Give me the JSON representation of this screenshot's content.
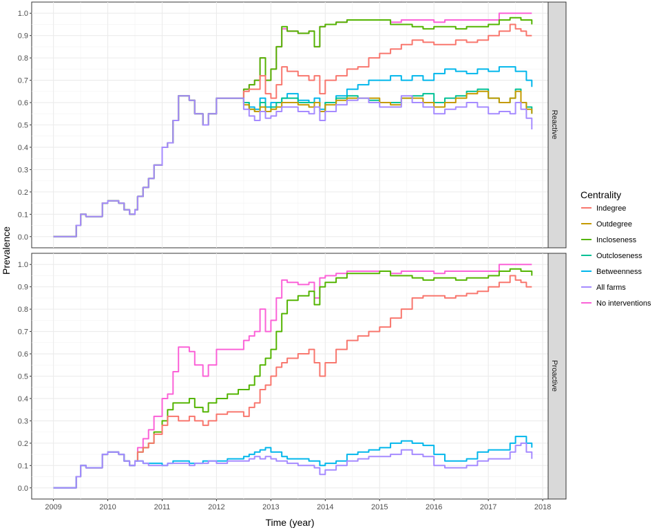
{
  "chart_data": {
    "type": "line",
    "xlabel": "Time (year)",
    "ylabel": "Prevalence",
    "xlim": [
      2008.6,
      2018.1
    ],
    "ylim": [
      -0.05,
      1.05
    ],
    "x_ticks": [
      2009,
      2010,
      2011,
      2012,
      2013,
      2014,
      2015,
      2016,
      2017,
      2018
    ],
    "y_ticks": [
      0.0,
      0.1,
      0.2,
      0.3,
      0.4,
      0.5,
      0.6,
      0.7,
      0.8,
      0.9,
      1.0
    ],
    "x_tick_labels": [
      "2009",
      "2010",
      "2011",
      "2012",
      "2013",
      "2014",
      "2015",
      "2016",
      "2017",
      "2018"
    ],
    "y_tick_labels": [
      "0.0",
      "0.1",
      "0.2",
      "0.3",
      "0.4",
      "0.5",
      "0.6",
      "0.7",
      "0.8",
      "0.9",
      "1.0"
    ],
    "grid": true,
    "legend": {
      "title": "Centrality",
      "placement": "right",
      "entries": [
        {
          "name": "Indegree",
          "color": "#F8766D"
        },
        {
          "name": "Outdegree",
          "color": "#C49A00"
        },
        {
          "name": "Incloseness",
          "color": "#53B400"
        },
        {
          "name": "Outcloseness",
          "color": "#00C094"
        },
        {
          "name": "Betweenness",
          "color": "#00B6EB"
        },
        {
          "name": "All farms",
          "color": "#A58AFF"
        },
        {
          "name": "No interventions",
          "color": "#FB61D7"
        }
      ]
    },
    "series_x": [
      2009.0,
      2009.4,
      2009.42,
      2009.5,
      2009.6,
      2009.75,
      2009.9,
      2010.0,
      2010.2,
      2010.3,
      2010.4,
      2010.5,
      2010.55,
      2010.65,
      2010.75,
      2010.85,
      2011.0,
      2011.1,
      2011.2,
      2011.3,
      2011.5,
      2011.6,
      2011.75,
      2011.85,
      2012.0,
      2012.2,
      2012.4,
      2012.5,
      2012.6,
      2012.7,
      2012.8,
      2012.9,
      2013.0,
      2013.1,
      2013.2,
      2013.3,
      2013.5,
      2013.7,
      2013.8,
      2013.9,
      2014.0,
      2014.2,
      2014.4,
      2014.6,
      2014.8,
      2015.0,
      2015.2,
      2015.4,
      2015.6,
      2015.8,
      2016.0,
      2016.2,
      2016.4,
      2016.6,
      2016.8,
      2017.0,
      2017.2,
      2017.4,
      2017.5,
      2017.6,
      2017.7,
      2017.8
    ],
    "panels": [
      {
        "strip": "Reactive",
        "series": [
          {
            "name": "No interventions",
            "values": [
              0,
              0,
              0.05,
              0.1,
              0.09,
              0.09,
              0.15,
              0.16,
              0.15,
              0.12,
              0.1,
              0.12,
              0.18,
              0.22,
              0.26,
              0.32,
              0.4,
              0.42,
              0.52,
              0.63,
              0.61,
              0.55,
              0.5,
              0.55,
              0.62,
              0.62,
              0.62,
              0.66,
              0.68,
              0.7,
              0.8,
              0.7,
              0.75,
              0.85,
              0.93,
              0.92,
              0.91,
              0.92,
              0.85,
              0.94,
              0.95,
              0.96,
              0.97,
              0.97,
              0.97,
              0.97,
              0.96,
              0.97,
              0.97,
              0.97,
              0.96,
              0.97,
              0.97,
              0.97,
              0.97,
              0.97,
              1.0,
              1.0,
              1.0,
              1.0,
              1.0,
              1.0
            ]
          },
          {
            "name": "Incloseness",
            "values": [
              0,
              0,
              0.05,
              0.1,
              0.09,
              0.09,
              0.15,
              0.16,
              0.15,
              0.12,
              0.1,
              0.12,
              0.18,
              0.22,
              0.26,
              0.32,
              0.4,
              0.42,
              0.52,
              0.63,
              0.61,
              0.55,
              0.5,
              0.55,
              0.62,
              0.62,
              0.62,
              0.66,
              0.68,
              0.7,
              0.8,
              0.7,
              0.75,
              0.85,
              0.94,
              0.92,
              0.91,
              0.92,
              0.85,
              0.94,
              0.95,
              0.96,
              0.97,
              0.97,
              0.97,
              0.97,
              0.95,
              0.95,
              0.94,
              0.93,
              0.94,
              0.94,
              0.93,
              0.94,
              0.94,
              0.95,
              0.97,
              0.98,
              0.98,
              0.97,
              0.97,
              0.95
            ]
          },
          {
            "name": "Indegree",
            "values": [
              0,
              0,
              0.05,
              0.1,
              0.09,
              0.09,
              0.15,
              0.16,
              0.15,
              0.12,
              0.1,
              0.12,
              0.18,
              0.22,
              0.26,
              0.32,
              0.4,
              0.42,
              0.52,
              0.63,
              0.61,
              0.55,
              0.5,
              0.55,
              0.62,
              0.62,
              0.62,
              0.65,
              0.66,
              0.66,
              0.72,
              0.64,
              0.62,
              0.68,
              0.76,
              0.74,
              0.72,
              0.7,
              0.72,
              0.64,
              0.7,
              0.72,
              0.75,
              0.76,
              0.8,
              0.82,
              0.84,
              0.86,
              0.88,
              0.87,
              0.86,
              0.86,
              0.88,
              0.87,
              0.88,
              0.9,
              0.92,
              0.95,
              0.93,
              0.92,
              0.9,
              0.9
            ]
          },
          {
            "name": "Betweenness",
            "values": [
              0,
              0,
              0.05,
              0.1,
              0.09,
              0.09,
              0.15,
              0.16,
              0.15,
              0.12,
              0.1,
              0.12,
              0.18,
              0.22,
              0.26,
              0.32,
              0.4,
              0.42,
              0.52,
              0.63,
              0.61,
              0.55,
              0.5,
              0.55,
              0.62,
              0.62,
              0.62,
              0.6,
              0.58,
              0.57,
              0.62,
              0.58,
              0.6,
              0.6,
              0.62,
              0.64,
              0.61,
              0.6,
              0.62,
              0.57,
              0.6,
              0.63,
              0.66,
              0.68,
              0.7,
              0.7,
              0.72,
              0.7,
              0.72,
              0.7,
              0.73,
              0.75,
              0.74,
              0.73,
              0.75,
              0.74,
              0.76,
              0.76,
              0.74,
              0.74,
              0.7,
              0.67
            ]
          },
          {
            "name": "Outcloseness",
            "values": [
              0,
              0,
              0.05,
              0.1,
              0.09,
              0.09,
              0.15,
              0.16,
              0.15,
              0.12,
              0.1,
              0.12,
              0.18,
              0.22,
              0.26,
              0.32,
              0.4,
              0.42,
              0.52,
              0.63,
              0.61,
              0.55,
              0.5,
              0.55,
              0.62,
              0.62,
              0.62,
              0.6,
              0.57,
              0.56,
              0.6,
              0.56,
              0.58,
              0.6,
              0.62,
              0.62,
              0.6,
              0.6,
              0.6,
              0.56,
              0.6,
              0.62,
              0.63,
              0.62,
              0.61,
              0.6,
              0.6,
              0.62,
              0.63,
              0.64,
              0.6,
              0.62,
              0.63,
              0.65,
              0.66,
              0.62,
              0.6,
              0.62,
              0.66,
              0.6,
              0.58,
              0.55
            ]
          },
          {
            "name": "Outdegree",
            "values": [
              0,
              0,
              0.05,
              0.1,
              0.09,
              0.09,
              0.15,
              0.16,
              0.15,
              0.12,
              0.1,
              0.12,
              0.18,
              0.22,
              0.26,
              0.32,
              0.4,
              0.42,
              0.52,
              0.63,
              0.61,
              0.55,
              0.5,
              0.55,
              0.62,
              0.62,
              0.62,
              0.59,
              0.57,
              0.56,
              0.58,
              0.56,
              0.57,
              0.58,
              0.6,
              0.6,
              0.59,
              0.58,
              0.6,
              0.56,
              0.59,
              0.61,
              0.62,
              0.62,
              0.62,
              0.6,
              0.59,
              0.62,
              0.62,
              0.6,
              0.58,
              0.6,
              0.62,
              0.64,
              0.65,
              0.62,
              0.6,
              0.62,
              0.65,
              0.6,
              0.57,
              0.55
            ]
          },
          {
            "name": "All farms",
            "values": [
              0,
              0,
              0.05,
              0.1,
              0.09,
              0.09,
              0.15,
              0.16,
              0.15,
              0.12,
              0.1,
              0.12,
              0.18,
              0.22,
              0.26,
              0.32,
              0.4,
              0.42,
              0.52,
              0.63,
              0.61,
              0.55,
              0.5,
              0.55,
              0.62,
              0.62,
              0.62,
              0.57,
              0.54,
              0.52,
              0.56,
              0.53,
              0.54,
              0.56,
              0.58,
              0.58,
              0.56,
              0.55,
              0.58,
              0.52,
              0.56,
              0.59,
              0.61,
              0.62,
              0.6,
              0.58,
              0.58,
              0.63,
              0.6,
              0.58,
              0.55,
              0.57,
              0.58,
              0.6,
              0.58,
              0.55,
              0.56,
              0.55,
              0.6,
              0.57,
              0.53,
              0.48
            ]
          }
        ]
      },
      {
        "strip": "Proactive",
        "series": [
          {
            "name": "No interventions",
            "values": [
              0,
              0,
              0.05,
              0.1,
              0.09,
              0.09,
              0.15,
              0.16,
              0.15,
              0.12,
              0.1,
              0.12,
              0.18,
              0.22,
              0.26,
              0.32,
              0.4,
              0.42,
              0.52,
              0.63,
              0.61,
              0.55,
              0.5,
              0.55,
              0.62,
              0.62,
              0.62,
              0.66,
              0.68,
              0.7,
              0.8,
              0.7,
              0.75,
              0.85,
              0.93,
              0.92,
              0.91,
              0.92,
              0.85,
              0.94,
              0.95,
              0.96,
              0.97,
              0.97,
              0.97,
              0.97,
              0.96,
              0.97,
              0.97,
              0.97,
              0.96,
              0.97,
              0.97,
              0.97,
              0.97,
              0.97,
              1.0,
              1.0,
              1.0,
              1.0,
              1.0,
              1.0
            ]
          },
          {
            "name": "Incloseness",
            "values": [
              0,
              0,
              0.05,
              0.1,
              0.09,
              0.09,
              0.15,
              0.16,
              0.15,
              0.12,
              0.1,
              0.12,
              0.16,
              0.18,
              0.2,
              0.25,
              0.3,
              0.35,
              0.38,
              0.38,
              0.4,
              0.36,
              0.34,
              0.38,
              0.4,
              0.42,
              0.44,
              0.44,
              0.46,
              0.5,
              0.55,
              0.58,
              0.62,
              0.7,
              0.78,
              0.84,
              0.86,
              0.88,
              0.82,
              0.9,
              0.92,
              0.94,
              0.96,
              0.96,
              0.96,
              0.97,
              0.95,
              0.95,
              0.94,
              0.93,
              0.94,
              0.94,
              0.93,
              0.94,
              0.94,
              0.95,
              0.97,
              0.98,
              0.98,
              0.97,
              0.97,
              0.95
            ]
          },
          {
            "name": "Indegree",
            "values": [
              0,
              0,
              0.05,
              0.1,
              0.09,
              0.09,
              0.15,
              0.16,
              0.15,
              0.12,
              0.1,
              0.12,
              0.16,
              0.18,
              0.2,
              0.24,
              0.28,
              0.32,
              0.32,
              0.3,
              0.32,
              0.3,
              0.28,
              0.3,
              0.33,
              0.34,
              0.34,
              0.32,
              0.36,
              0.38,
              0.44,
              0.46,
              0.5,
              0.54,
              0.56,
              0.58,
              0.6,
              0.62,
              0.56,
              0.5,
              0.56,
              0.62,
              0.66,
              0.68,
              0.7,
              0.72,
              0.76,
              0.8,
              0.85,
              0.86,
              0.86,
              0.85,
              0.86,
              0.87,
              0.88,
              0.9,
              0.92,
              0.95,
              0.93,
              0.92,
              0.9,
              0.9
            ]
          },
          {
            "name": "Betweenness",
            "values": [
              0,
              0,
              0.05,
              0.1,
              0.09,
              0.09,
              0.15,
              0.16,
              0.15,
              0.12,
              0.1,
              0.12,
              0.12,
              0.11,
              0.11,
              0.11,
              0.1,
              0.11,
              0.12,
              0.12,
              0.11,
              0.11,
              0.12,
              0.12,
              0.12,
              0.13,
              0.13,
              0.14,
              0.15,
              0.16,
              0.17,
              0.18,
              0.16,
              0.16,
              0.14,
              0.13,
              0.13,
              0.12,
              0.12,
              0.1,
              0.11,
              0.12,
              0.15,
              0.16,
              0.17,
              0.18,
              0.2,
              0.21,
              0.2,
              0.19,
              0.15,
              0.12,
              0.12,
              0.13,
              0.16,
              0.17,
              0.17,
              0.2,
              0.23,
              0.23,
              0.2,
              0.18
            ]
          },
          {
            "name": "All farms",
            "values": [
              0,
              0,
              0.05,
              0.1,
              0.09,
              0.09,
              0.15,
              0.16,
              0.15,
              0.12,
              0.1,
              0.12,
              0.12,
              0.11,
              0.1,
              0.1,
              0.1,
              0.11,
              0.11,
              0.11,
              0.1,
              0.11,
              0.11,
              0.12,
              0.11,
              0.12,
              0.12,
              0.12,
              0.13,
              0.14,
              0.13,
              0.14,
              0.13,
              0.12,
              0.12,
              0.11,
              0.1,
              0.1,
              0.09,
              0.06,
              0.08,
              0.1,
              0.12,
              0.13,
              0.14,
              0.14,
              0.15,
              0.17,
              0.15,
              0.14,
              0.1,
              0.09,
              0.09,
              0.1,
              0.12,
              0.13,
              0.13,
              0.16,
              0.19,
              0.2,
              0.16,
              0.13
            ]
          }
        ]
      }
    ]
  }
}
